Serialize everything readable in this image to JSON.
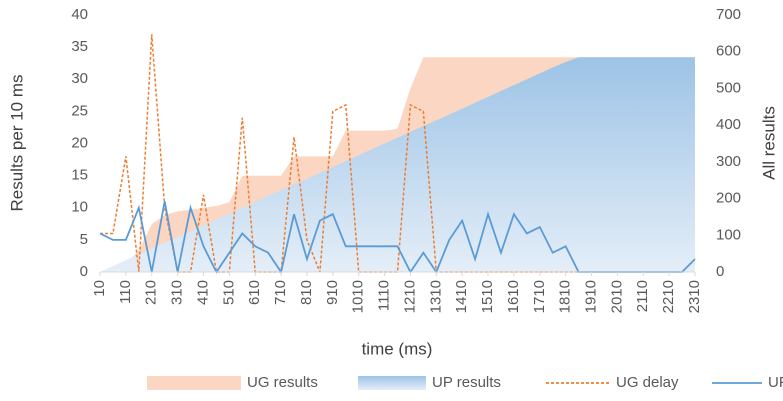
{
  "chart_data": {
    "type": "combo",
    "xlabel": "time (ms)",
    "ylabel": "Results per 10 ms",
    "y2label": "All results",
    "x": [
      10,
      60,
      110,
      160,
      210,
      260,
      310,
      360,
      410,
      460,
      510,
      560,
      610,
      660,
      710,
      760,
      810,
      860,
      910,
      960,
      1010,
      1060,
      1110,
      1160,
      1210,
      1260,
      1310,
      1360,
      1410,
      1460,
      1510,
      1560,
      1610,
      1660,
      1710,
      1760,
      1810,
      1860,
      1910,
      1960,
      2010,
      2060,
      2110,
      2160,
      2210,
      2260,
      2310
    ],
    "xlim": [
      10,
      2310
    ],
    "xticks": [
      10,
      110,
      210,
      310,
      410,
      510,
      610,
      710,
      810,
      910,
      1010,
      1110,
      1210,
      1310,
      1410,
      1510,
      1610,
      1710,
      1810,
      1910,
      2010,
      2110,
      2210,
      2310
    ],
    "ylim": [
      0,
      40
    ],
    "yticks": [
      0,
      5,
      10,
      15,
      20,
      25,
      30,
      35,
      40
    ],
    "y2lim": [
      0,
      700
    ],
    "y2ticks": [
      0,
      100,
      200,
      300,
      400,
      500,
      600,
      700
    ],
    "series": [
      {
        "name": "UG results",
        "kind": "area",
        "axis": "y2",
        "color": "#fbd6c2",
        "values": [
          0,
          0,
          20,
          60,
          130,
          155,
          165,
          170,
          175,
          180,
          190,
          262,
          262,
          262,
          262,
          315,
          315,
          315,
          315,
          385,
          385,
          385,
          385,
          390,
          500,
          585,
          585,
          585,
          585,
          585,
          585,
          585,
          585,
          585,
          585,
          585,
          585,
          585,
          585,
          585,
          585,
          585,
          585,
          585,
          585,
          585,
          585
        ]
      },
      {
        "name": "UP results",
        "kind": "area",
        "axis": "y2",
        "color": "#bdd7ee",
        "values": [
          0,
          16,
          32,
          48,
          64,
          80,
          95,
          111,
          127,
          143,
          159,
          175,
          191,
          207,
          223,
          239,
          254,
          270,
          286,
          302,
          318,
          334,
          350,
          366,
          382,
          398,
          413,
          429,
          445,
          461,
          477,
          493,
          509,
          525,
          541,
          557,
          572,
          585,
          585,
          585,
          585,
          585,
          585,
          585,
          585,
          585,
          585
        ]
      },
      {
        "name": "UG delay",
        "kind": "line",
        "dashed": true,
        "color": "#ed7d31",
        "values": [
          6,
          6,
          18,
          0,
          37,
          10,
          0,
          0,
          12,
          0,
          0,
          24,
          0,
          0,
          0,
          21,
          5,
          0,
          25,
          26,
          0,
          0,
          0,
          0,
          26,
          25,
          0,
          0,
          0,
          0,
          0,
          0,
          0,
          0,
          0,
          0,
          0,
          0,
          null,
          null,
          null,
          null,
          null,
          null,
          null,
          null,
          null
        ]
      },
      {
        "name": "UP delay",
        "kind": "line",
        "dashed": false,
        "color": "#5b9bd5",
        "values": [
          6,
          5,
          5,
          10,
          0,
          11,
          0,
          10,
          4,
          0,
          3,
          6,
          4,
          3,
          0,
          9,
          2,
          8,
          9,
          4,
          4,
          4,
          4,
          4,
          0,
          3,
          0,
          5,
          8,
          2,
          9,
          3,
          9,
          6,
          7,
          3,
          4,
          0,
          0,
          0,
          0,
          0,
          0,
          0,
          0,
          0,
          2
        ]
      }
    ]
  }
}
